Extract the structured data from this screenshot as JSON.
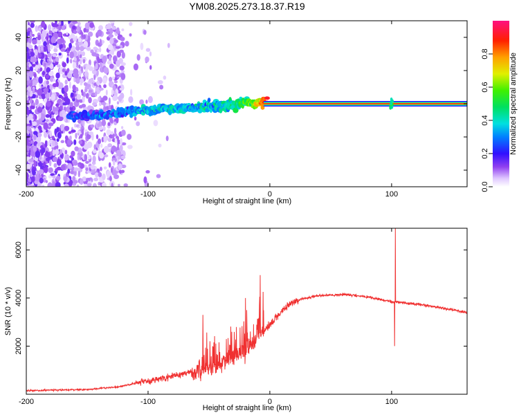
{
  "chart_data": [
    {
      "type": "heatmap",
      "title": "YM08.2025.273.18.37.R19",
      "xlabel": "Height of straight line (km)",
      "ylabel": "Frequency (Hz)",
      "xlim": [
        -200,
        162
      ],
      "ylim": [
        -50,
        50
      ],
      "x_ticks": [
        -200,
        -100,
        0,
        100
      ],
      "x_tick_labels": [
        "-200",
        "-100",
        "0",
        "100"
      ],
      "y_ticks": [
        -40,
        -20,
        0,
        20,
        40
      ],
      "y_tick_labels": [
        "-40",
        "-20",
        "0",
        "20",
        "40"
      ],
      "colorbar": {
        "label": "Normalized spectral amplitude",
        "range": [
          0,
          1
        ],
        "ticks": [
          0.0,
          0.2,
          0.4,
          0.6,
          0.8
        ],
        "tick_labels": [
          "0.0",
          "0.2",
          "0.4",
          "0.6",
          "0.8"
        ]
      },
      "features": {
        "noise_region_x": [
          -200,
          -120
        ],
        "ridge": [
          {
            "x": -165,
            "f": -8,
            "amp": 0.2
          },
          {
            "x": -140,
            "f": -7,
            "amp": 0.25
          },
          {
            "x": -120,
            "f": -5,
            "amp": 0.3
          },
          {
            "x": -100,
            "f": -4,
            "amp": 0.35
          },
          {
            "x": -80,
            "f": -3,
            "amp": 0.35
          },
          {
            "x": -60,
            "f": -2,
            "amp": 0.35
          },
          {
            "x": -40,
            "f": -1,
            "amp": 0.4
          },
          {
            "x": -20,
            "f": 1,
            "amp": 0.5
          },
          {
            "x": 0,
            "f": 0,
            "amp": 0.9
          },
          {
            "x": 50,
            "f": 0,
            "amp": 0.95
          },
          {
            "x": 100,
            "f": 0,
            "amp": 0.95
          },
          {
            "x": 162,
            "f": 0,
            "amp": 0.95
          }
        ]
      }
    },
    {
      "type": "line",
      "xlabel": "Height of straight line (km)",
      "ylabel": "SNR (10 * v/v)",
      "xlim": [
        -200,
        162
      ],
      "ylim": [
        0,
        6900
      ],
      "x_ticks": [
        -200,
        -100,
        0,
        100
      ],
      "x_tick_labels": [
        "-200",
        "-100",
        "0",
        "100"
      ],
      "y_ticks": [
        2000,
        4000,
        6000
      ],
      "y_tick_labels": [
        "2000",
        "4000",
        "6000"
      ],
      "color": "#f03030",
      "series": [
        {
          "name": "SNR",
          "trend": [
            {
              "x": -200,
              "y": 150
            },
            {
              "x": -150,
              "y": 200
            },
            {
              "x": -125,
              "y": 300
            },
            {
              "x": -100,
              "y": 550
            },
            {
              "x": -75,
              "y": 800
            },
            {
              "x": -55,
              "y": 1000
            },
            {
              "x": -40,
              "y": 1300
            },
            {
              "x": -25,
              "y": 1600
            },
            {
              "x": -15,
              "y": 2000
            },
            {
              "x": -5,
              "y": 2600
            },
            {
              "x": 5,
              "y": 3200
            },
            {
              "x": 15,
              "y": 3700
            },
            {
              "x": 25,
              "y": 3950
            },
            {
              "x": 40,
              "y": 4100
            },
            {
              "x": 60,
              "y": 4150
            },
            {
              "x": 80,
              "y": 4050
            },
            {
              "x": 100,
              "y": 3850
            },
            {
              "x": 120,
              "y": 3750
            },
            {
              "x": 140,
              "y": 3600
            },
            {
              "x": 162,
              "y": 3400
            }
          ],
          "spikes": [
            {
              "x": -55,
              "y": 3300
            },
            {
              "x": -20,
              "y": 4000
            },
            {
              "x": -8,
              "y": 4950
            },
            {
              "x": 103,
              "y": 6900
            },
            {
              "x": 102.5,
              "y": 2000
            }
          ]
        }
      ]
    }
  ]
}
